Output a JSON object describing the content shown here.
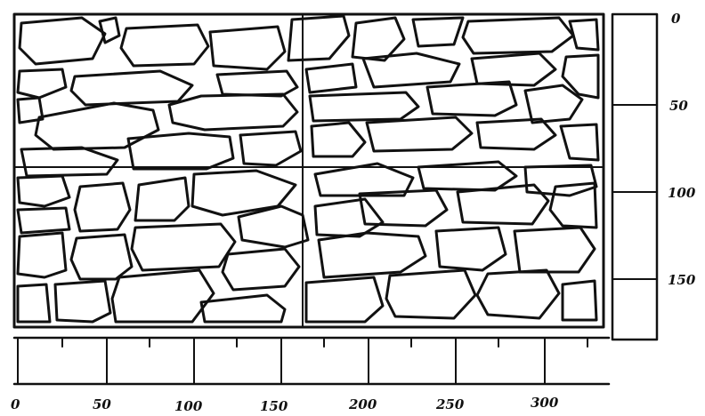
{
  "figure": {
    "x_scale": {
      "labels": [
        "0",
        "50",
        "100",
        "150",
        "200",
        "250",
        "300"
      ]
    },
    "y_scale": {
      "labels": [
        "0",
        "50",
        "100",
        "150"
      ]
    },
    "colors": {
      "ink": "#111111",
      "paper": "#ffffff"
    }
  }
}
